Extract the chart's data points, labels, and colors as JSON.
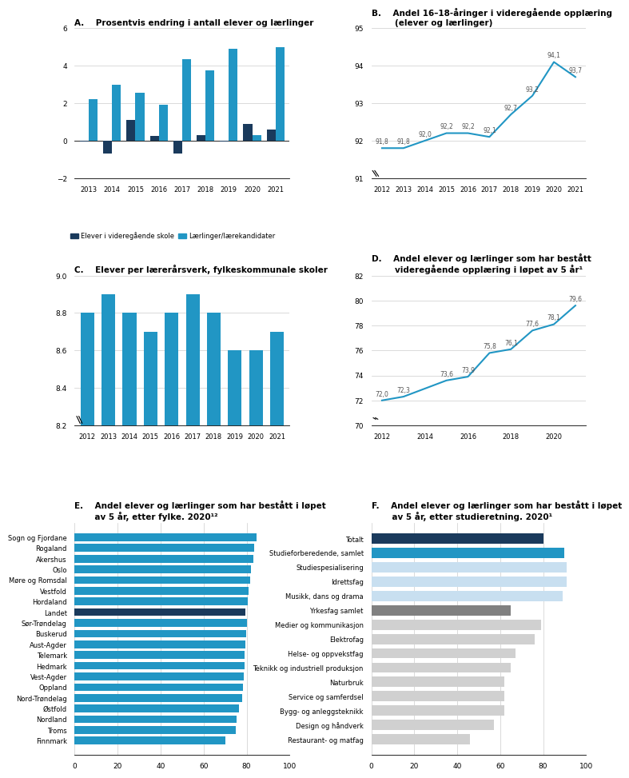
{
  "A": {
    "title": "A.    Prosentvis endring i antall elever og lærlinger",
    "years": [
      2013,
      2014,
      2015,
      2016,
      2017,
      2018,
      2019,
      2020,
      2021
    ],
    "elever": [
      -0.05,
      -0.7,
      1.1,
      0.25,
      -0.7,
      0.3,
      -0.05,
      0.9,
      0.6
    ],
    "laerlinger": [
      2.2,
      3.0,
      2.55,
      1.9,
      4.35,
      3.75,
      4.9,
      0.3,
      5.0
    ],
    "ylim": [
      -2,
      6
    ],
    "yticks": [
      -2,
      0,
      2,
      4,
      6
    ],
    "elever_color": "#1a3a5c",
    "laerlinger_color": "#2196c4",
    "legend_elever": "Elever i videregående skole",
    "legend_laerlinger": "Lærlinger/lærekandidater"
  },
  "B": {
    "title": "B.    Andel 16–18-åringer i videregående opplæring\n        (elever og lærlinger)",
    "years": [
      2012,
      2013,
      2014,
      2015,
      2016,
      2017,
      2018,
      2019,
      2020,
      2021
    ],
    "values": [
      91.8,
      91.8,
      92.0,
      92.2,
      92.2,
      92.1,
      92.7,
      93.2,
      94.1,
      93.7
    ],
    "labels": [
      "91,8",
      "91,8",
      "92,0",
      "92,2",
      "92,2",
      "92,1",
      "92,7",
      "93,2",
      "94,1",
      "93,7"
    ],
    "ylim": [
      91,
      95
    ],
    "yticks": [
      91,
      92,
      93,
      94,
      95
    ],
    "color": "#2196c4"
  },
  "C": {
    "title": "C.    Elever per lærerårsverk, fylkeskommunale skoler",
    "years": [
      2012,
      2013,
      2014,
      2015,
      2016,
      2017,
      2018,
      2019,
      2020,
      2021
    ],
    "values": [
      8.8,
      8.9,
      8.8,
      8.7,
      8.8,
      8.9,
      8.8,
      8.6,
      8.6,
      8.7
    ],
    "ylim": [
      8.2,
      9.0
    ],
    "yticks": [
      8.2,
      8.4,
      8.6,
      8.8,
      9.0
    ],
    "color": "#2196c4"
  },
  "D": {
    "title": "D.    Andel elever og lærlinger som har bestått\n        videregående opplæring i løpet av 5 år¹",
    "x_actual": [
      2012,
      2013,
      2015,
      2016,
      2017,
      2018,
      2019,
      2020,
      2021
    ],
    "values": [
      72.0,
      72.3,
      73.6,
      73.9,
      75.8,
      76.1,
      77.6,
      78.1,
      79.6
    ],
    "labels": [
      "72,0",
      "72,3",
      "73,6",
      "73,9",
      "75,8",
      "76,1",
      "77,6",
      "78,1",
      "79,6"
    ],
    "ylim": [
      70,
      82
    ],
    "yticks": [
      70,
      72,
      74,
      76,
      78,
      80,
      82
    ],
    "xticks": [
      2012,
      2014,
      2016,
      2018,
      2020
    ],
    "color": "#2196c4"
  },
  "E": {
    "title": "E.    Andel elever og lærlinger som har bestått i løpet\n       av 5 år, etter fylke. 2020¹²",
    "categories": [
      "Sogn og Fjordane",
      "Rogaland",
      "Akershus",
      "Oslo",
      "Møre og Romsdal",
      "Vestfold",
      "Hordaland",
      "Landet",
      "Sør-Trøndelag",
      "Buskerud",
      "Aust-Agder",
      "Telemark",
      "Hedmark",
      "Vest-Agder",
      "Oppland",
      "Nord-Trøndelag",
      "Østfold",
      "Nordland",
      "Troms",
      "Finnmark"
    ],
    "values": [
      84.5,
      83.5,
      83.0,
      82.0,
      81.5,
      81.0,
      80.5,
      79.5,
      80.0,
      79.8,
      79.5,
      79.2,
      79.0,
      78.5,
      78.2,
      77.8,
      76.5,
      75.5,
      75.0,
      70.0
    ],
    "landet_index": 7,
    "color_normal": "#2196c4",
    "color_landet": "#1a3a5c",
    "xlim": [
      0,
      100
    ]
  },
  "F": {
    "title": "F.    Andel elever og lærlinger som har bestått i løpet\n       av 5 år, etter studieretning. 2020¹",
    "categories": [
      "Totalt",
      "Studieforberedende, samlet",
      "Studiespesialisering",
      "Idrettsfag",
      "Musikk, dans og drama",
      "Yrkesfag samlet",
      "Medier og kommunikasjon",
      "Elektrofag",
      "Helse- og oppvekstfag",
      "Teknikk og industriell produksjon",
      "Naturbruk",
      "Service og samferdsel",
      "Bygg- og anleggsteknikk",
      "Design og håndverk",
      "Restaurant- og matfag"
    ],
    "values": [
      80,
      90,
      91,
      91,
      89,
      65,
      79,
      76,
      67,
      65,
      62,
      62,
      62,
      57,
      46
    ],
    "totalt_index": 0,
    "studforbered_index": 1,
    "yrkesfag_index": 5,
    "color_totalt": "#1a3a5c",
    "color_studforbered": "#2196c4",
    "color_yrkesfag": "#808080",
    "color_light": "#c8dff0",
    "color_lightgray": "#d0d0d0",
    "xlim": [
      0,
      100
    ]
  }
}
